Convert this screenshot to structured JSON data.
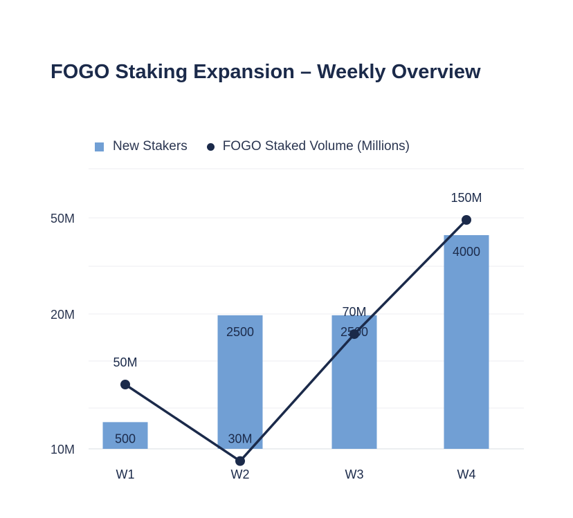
{
  "chart_data": {
    "type": "bar",
    "title": "FOGO Staking Expansion – Weekly Overview",
    "categories": [
      "W1",
      "W2",
      "W3",
      "W4"
    ],
    "yscale": "log",
    "yticks": [
      "10M",
      "20M",
      "50M"
    ],
    "grid": true,
    "legend_position": "top-left",
    "series": [
      {
        "name": "New Stakers",
        "type": "bar",
        "values": [
          500,
          2500,
          2500,
          4000
        ],
        "labels": [
          "500",
          "2500",
          "2500",
          "4000"
        ],
        "color": "#719fd4"
      },
      {
        "name": "FOGO Staked Volume (Millions)",
        "type": "line",
        "values": [
          50,
          30,
          70,
          150
        ],
        "labels": [
          "50M",
          "30M",
          "70M",
          "150M"
        ],
        "color": "#1b2a4a"
      }
    ]
  }
}
